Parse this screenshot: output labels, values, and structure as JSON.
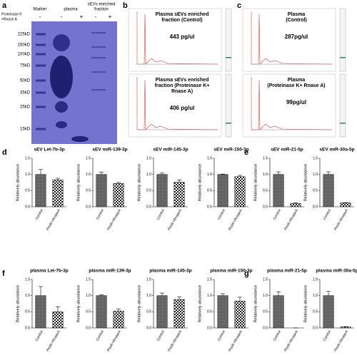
{
  "panel_letters": [
    "a",
    "b",
    "c",
    "d",
    "e",
    "f",
    "g"
  ],
  "gel": {
    "lane_headers": [
      "Marker",
      "plasma",
      [
        "sEVs enriched",
        "fraction"
      ]
    ],
    "treatment_label": [
      "Proteinase K",
      "+Rnase A"
    ],
    "treatment_signs": [
      "-",
      "-",
      "+",
      "-",
      "+"
    ],
    "marker_labels": [
      "225kD",
      "150kD",
      "100kD",
      "75kD",
      "50kD",
      "35kD",
      "25kD",
      "15kD"
    ]
  },
  "electropherograms": [
    {
      "title": [
        "Plasma sEVs enriched",
        "fraction (Control)"
      ],
      "concentration": "443 pg/ul"
    },
    {
      "title": [
        "Plasma sEVs enriched",
        "fraction (Proteinase K+",
        "Rnase A)"
      ],
      "concentration": "406 pg/ul"
    },
    {
      "title": [
        "Plasma",
        "(Control)"
      ],
      "concentration": "287pg/ul"
    },
    {
      "title": [
        "Plasma",
        "(Proteinase K+ Rnase A)"
      ],
      "concentration": "99pg/ul"
    }
  ],
  "chart_data": [
    {
      "type": "bar",
      "title": "sEV Let-7b-3p",
      "y_label": "Relatively abundance",
      "categories": [
        "Control",
        "ProtK+RnaseA"
      ],
      "values": [
        1.0,
        0.83
      ],
      "errors": [
        0.15,
        0.05
      ],
      "ylim": [
        0,
        1.5
      ],
      "yticks": [
        {
          "value": 0,
          "label": "0.0"
        },
        {
          "value": 0.5,
          "label": "0.5"
        },
        {
          "value": 1,
          "label": "1.0"
        },
        {
          "value": 1.5,
          "label": "1.5"
        }
      ]
    },
    {
      "type": "bar",
      "title": "sEV miR-139-3p",
      "y_label": "Relatively abundance",
      "categories": [
        "Control",
        "ProtK+RnaseA"
      ],
      "values": [
        1.0,
        0.72
      ],
      "errors": [
        0.07,
        0.03
      ],
      "ylim": [
        0,
        1.5
      ],
      "yticks": [
        {
          "value": 0,
          "label": "0.0"
        },
        {
          "value": 0.5,
          "label": "0.5"
        },
        {
          "value": 1,
          "label": "1.0"
        },
        {
          "value": 1.5,
          "label": "1.5"
        }
      ]
    },
    {
      "type": "bar",
      "title": "sEV miR-145-3p",
      "y_label": "Relatively abundance",
      "categories": [
        "Control",
        "ProtK+RnaseA"
      ],
      "values": [
        1.0,
        0.76
      ],
      "errors": [
        0.04,
        0.07
      ],
      "ylim": [
        0,
        1.5
      ],
      "yticks": [
        {
          "value": 0,
          "label": "0.0"
        },
        {
          "value": 0.5,
          "label": "0.5"
        },
        {
          "value": 1,
          "label": "1.0"
        },
        {
          "value": 1.5,
          "label": "1.5"
        }
      ]
    },
    {
      "type": "bar",
      "title": "sEV miR-150-3p",
      "y_label": "Relatively abundance",
      "categories": [
        "Control",
        "ProtK+RnaseA"
      ],
      "values": [
        1.0,
        0.93
      ],
      "errors": [
        0.01,
        0.04
      ],
      "ylim": [
        0,
        1.5
      ],
      "yticks": [
        {
          "value": 0,
          "label": "0.0"
        },
        {
          "value": 0.5,
          "label": "0.5"
        },
        {
          "value": 1,
          "label": "1.0"
        },
        {
          "value": 1.5,
          "label": "1.5"
        }
      ]
    },
    {
      "type": "bar",
      "title": "sEV miR-21-5p",
      "y_label": "Relatively abundance",
      "categories": [
        "Control",
        "ProtK+RnaseA"
      ],
      "values": [
        1.0,
        0.1
      ],
      "errors": [
        0.08,
        0.02
      ],
      "ylim": [
        0,
        1.5
      ],
      "yticks": [
        {
          "value": 0,
          "label": "0.0"
        },
        {
          "value": 0.5,
          "label": "0.5"
        },
        {
          "value": 1,
          "label": "1.0"
        },
        {
          "value": 1.5,
          "label": "1.5"
        }
      ]
    },
    {
      "type": "bar",
      "title": "sEV miR-30a-5p",
      "y_label": "Relatively abundance",
      "categories": [
        "Control",
        "ProtK+RnaseA"
      ],
      "values": [
        1.0,
        0.12
      ],
      "errors": [
        0.08,
        0.01
      ],
      "ylim": [
        0,
        1.5
      ],
      "yticks": [
        {
          "value": 0,
          "label": "0.0"
        },
        {
          "value": 0.5,
          "label": "0.5"
        },
        {
          "value": 1,
          "label": "1.0"
        },
        {
          "value": 1.5,
          "label": "1.5"
        }
      ]
    },
    {
      "type": "bar",
      "title": "plasma Let-7b-3p",
      "y_label": "Relatively abundance",
      "categories": [
        "Control",
        "ProtK+RnaseA"
      ],
      "values": [
        1.0,
        0.5
      ],
      "errors": [
        0.28,
        0.15
      ],
      "ylim": [
        0,
        1.5
      ],
      "yticks": [
        {
          "value": 0,
          "label": "0.0"
        },
        {
          "value": 0.5,
          "label": "0.5"
        },
        {
          "value": 1,
          "label": "1.0"
        },
        {
          "value": 1.5,
          "label": "1.5"
        }
      ]
    },
    {
      "type": "bar",
      "title": "plasma miR-139-3p",
      "y_label": "Relatively abundance",
      "categories": [
        "Control",
        "ProtK+RnaseA"
      ],
      "values": [
        1.0,
        0.52
      ],
      "errors": [
        0.02,
        0.07
      ],
      "ylim": [
        0,
        1.5
      ],
      "yticks": [
        {
          "value": 0,
          "label": "0.0"
        },
        {
          "value": 0.5,
          "label": "0.5"
        },
        {
          "value": 1,
          "label": "1.0"
        },
        {
          "value": 1.5,
          "label": "1.5"
        }
      ]
    },
    {
      "type": "bar",
      "title": "plasma miR-145-3p",
      "y_label": "Relatively abundance",
      "categories": [
        "Control",
        "ProtK+RnaseA"
      ],
      "values": [
        1.0,
        0.88
      ],
      "errors": [
        0.08,
        0.08
      ],
      "ylim": [
        0,
        1.5
      ],
      "yticks": [
        {
          "value": 0,
          "label": "0.0"
        },
        {
          "value": 0.5,
          "label": "0.5"
        },
        {
          "value": 1,
          "label": "1.0"
        },
        {
          "value": 1.5,
          "label": "1.5"
        }
      ]
    },
    {
      "type": "bar",
      "title": "plasma miR-150-3p",
      "y_label": "Relatively abundance",
      "categories": [
        "Control",
        "ProtK+RnaseA"
      ],
      "values": [
        1.0,
        0.83
      ],
      "errors": [
        0.06,
        0.12
      ],
      "ylim": [
        0,
        1.5
      ],
      "yticks": [
        {
          "value": 0,
          "label": "0.0"
        },
        {
          "value": 0.5,
          "label": "0.5"
        },
        {
          "value": 1,
          "label": "1.0"
        },
        {
          "value": 1.5,
          "label": "1.5"
        }
      ]
    },
    {
      "type": "bar",
      "title": "plasma miR-21-5p",
      "y_label": "Relatively abundance",
      "categories": [
        "Control",
        "ProtK+RnaseA"
      ],
      "values": [
        1.0,
        0.0
      ],
      "errors": [
        0.12,
        0.0
      ],
      "ylim": [
        0,
        1.5
      ],
      "yticks": [
        {
          "value": 0,
          "label": "0.0"
        },
        {
          "value": 0.5,
          "label": "0.5"
        },
        {
          "value": 1,
          "label": "1.0"
        },
        {
          "value": 1.5,
          "label": "1.5"
        }
      ]
    },
    {
      "type": "bar",
      "title": "plasma miR-30a-5p",
      "y_label": "Relatively abundance",
      "categories": [
        "Control",
        "ProtK+RnaseA"
      ],
      "values": [
        1.0,
        0.03
      ],
      "errors": [
        0.13,
        0.01
      ],
      "ylim": [
        0,
        1.5
      ],
      "yticks": [
        {
          "value": 0,
          "label": "0.0"
        },
        {
          "value": 0.5,
          "label": "0.5"
        },
        {
          "value": 1,
          "label": "1.0"
        },
        {
          "value": 1.5,
          "label": "1.5"
        }
      ]
    }
  ]
}
